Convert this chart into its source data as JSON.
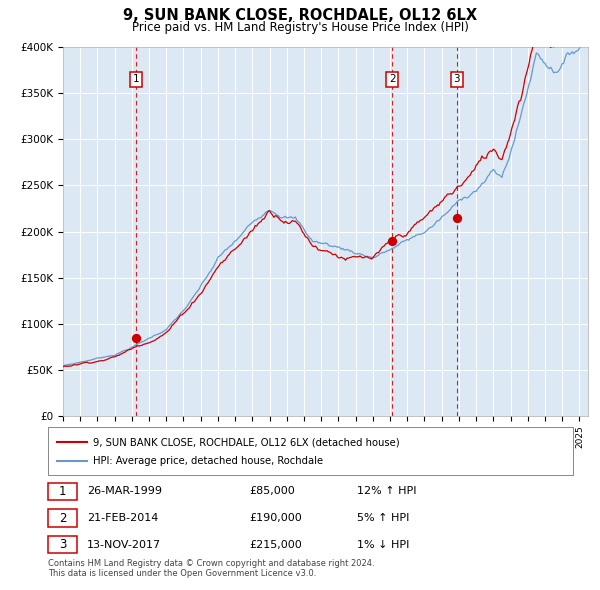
{
  "title": "9, SUN BANK CLOSE, ROCHDALE, OL12 6LX",
  "subtitle": "Price paid vs. HM Land Registry's House Price Index (HPI)",
  "bg_color": "#dce9f5",
  "red_line_color": "#cc0000",
  "blue_line_color": "#6699cc",
  "ylim": [
    0,
    400000
  ],
  "yticks": [
    0,
    50000,
    100000,
    150000,
    200000,
    250000,
    300000,
    350000,
    400000
  ],
  "ytick_labels": [
    "£0",
    "£50K",
    "£100K",
    "£150K",
    "£200K",
    "£250K",
    "£300K",
    "£350K",
    "£400K"
  ],
  "xlim_start": 1995.0,
  "xlim_end": 2025.5,
  "transactions": [
    {
      "num": 1,
      "date": "26-MAR-1999",
      "year": 1999.23,
      "price": 85000,
      "pct": "12%",
      "dir": "↑"
    },
    {
      "num": 2,
      "date": "21-FEB-2014",
      "year": 2014.13,
      "price": 190000,
      "pct": "5%",
      "dir": "↑"
    },
    {
      "num": 3,
      "date": "13-NOV-2017",
      "year": 2017.87,
      "price": 215000,
      "pct": "1%",
      "dir": "↓"
    }
  ],
  "legend_entries": [
    {
      "label": "9, SUN BANK CLOSE, ROCHDALE, OL12 6LX (detached house)",
      "color": "#cc0000"
    },
    {
      "label": "HPI: Average price, detached house, Rochdale",
      "color": "#6699cc"
    }
  ],
  "footer1": "Contains HM Land Registry data © Crown copyright and database right 2024.",
  "footer2": "This data is licensed under the Open Government Licence v3.0."
}
